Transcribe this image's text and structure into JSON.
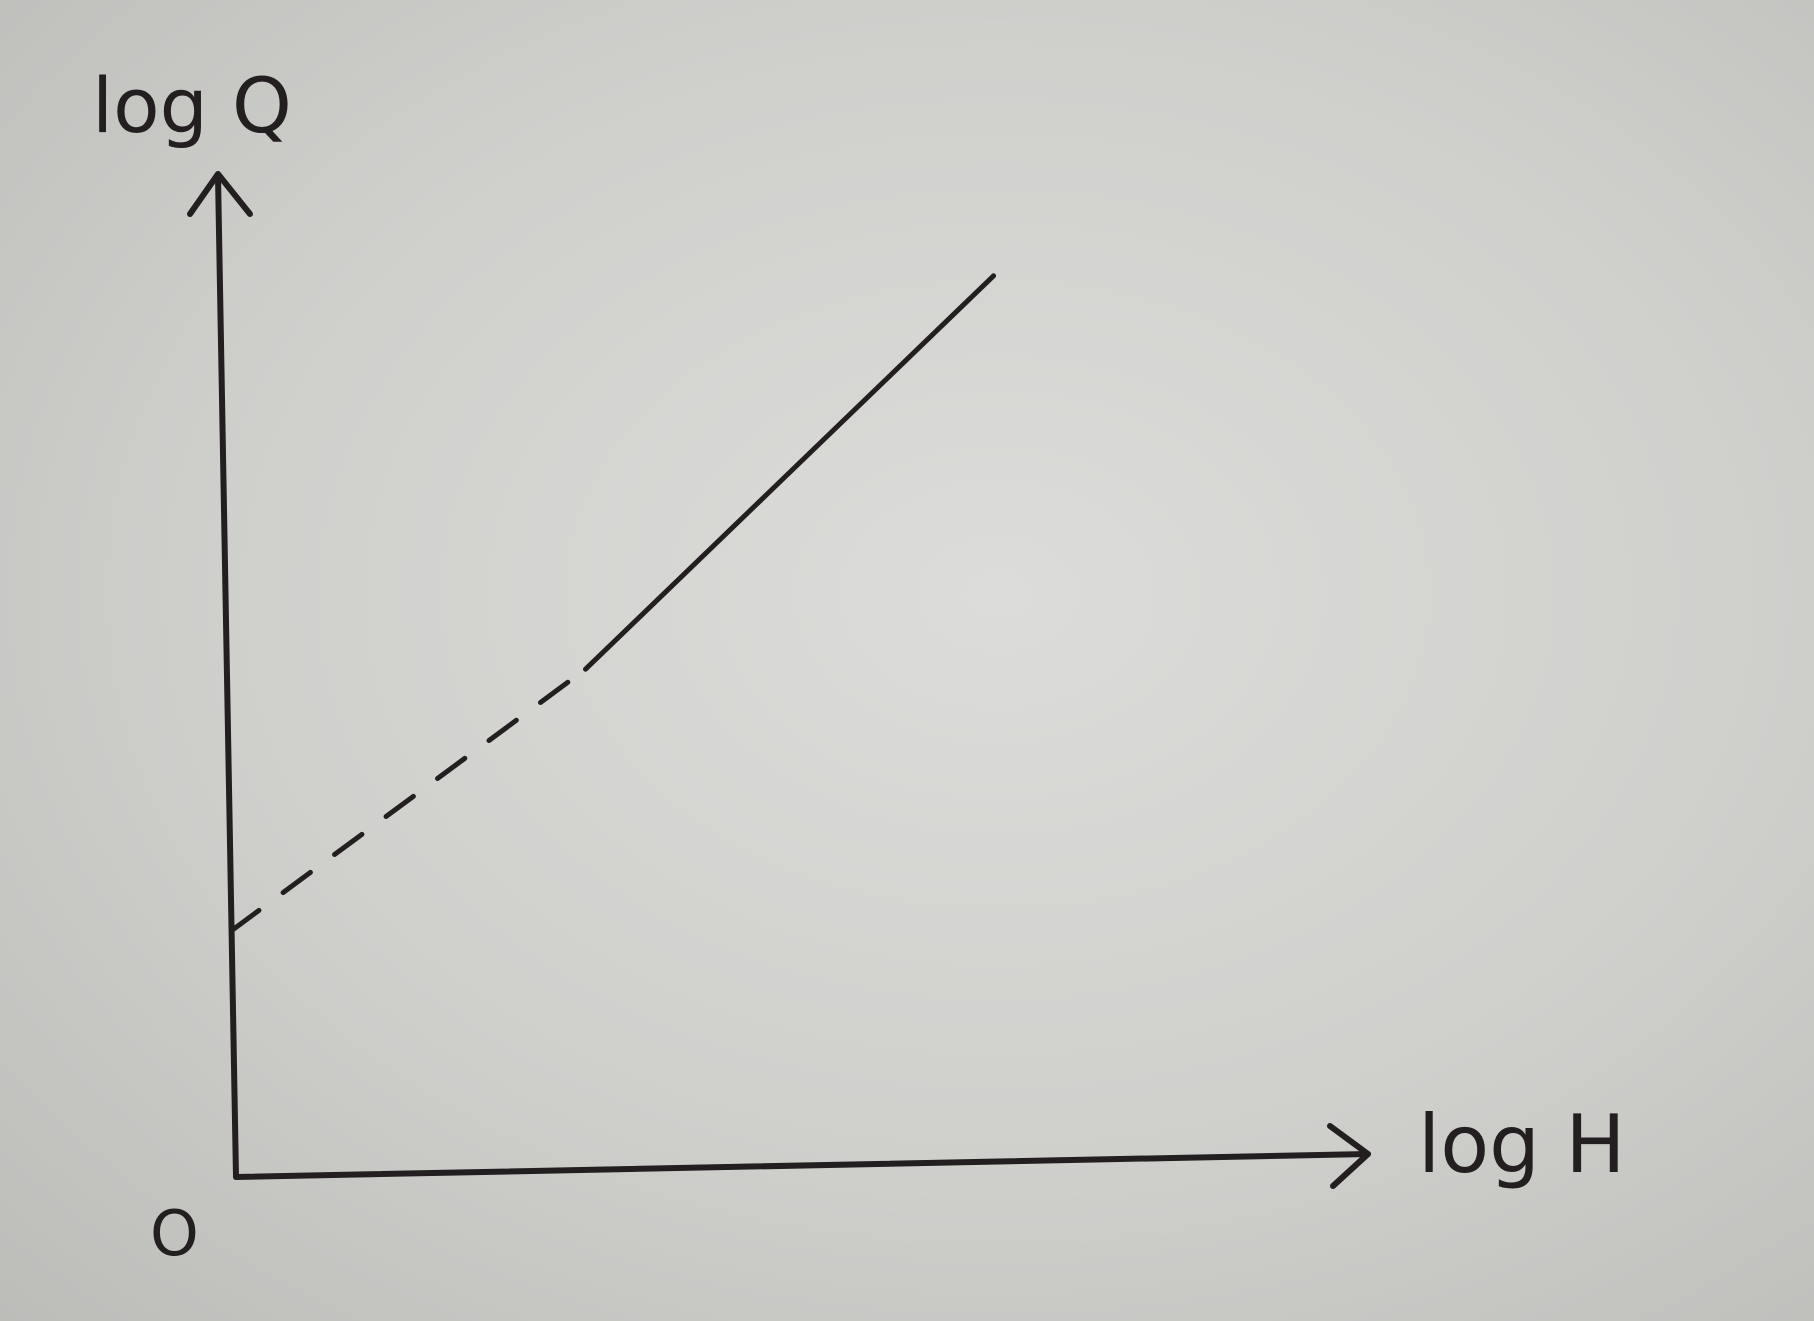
{
  "chart_data": {
    "type": "line",
    "xlabel": "log H",
    "ylabel": "log Q",
    "origin_label": "O",
    "series": [
      {
        "style": "solid",
        "x": [
          3.8,
          8.2
        ],
        "y": [
          6.5,
          11.5
        ]
      },
      {
        "style": "dashed",
        "x": [
          0,
          3.8
        ],
        "y": [
          3.2,
          6.5
        ]
      }
    ],
    "xlim": [
      0,
      12
    ],
    "ylim": [
      0,
      13
    ],
    "grid": false,
    "colors": {
      "ink": "#231f20",
      "paper": "#d2d2cf"
    }
  }
}
